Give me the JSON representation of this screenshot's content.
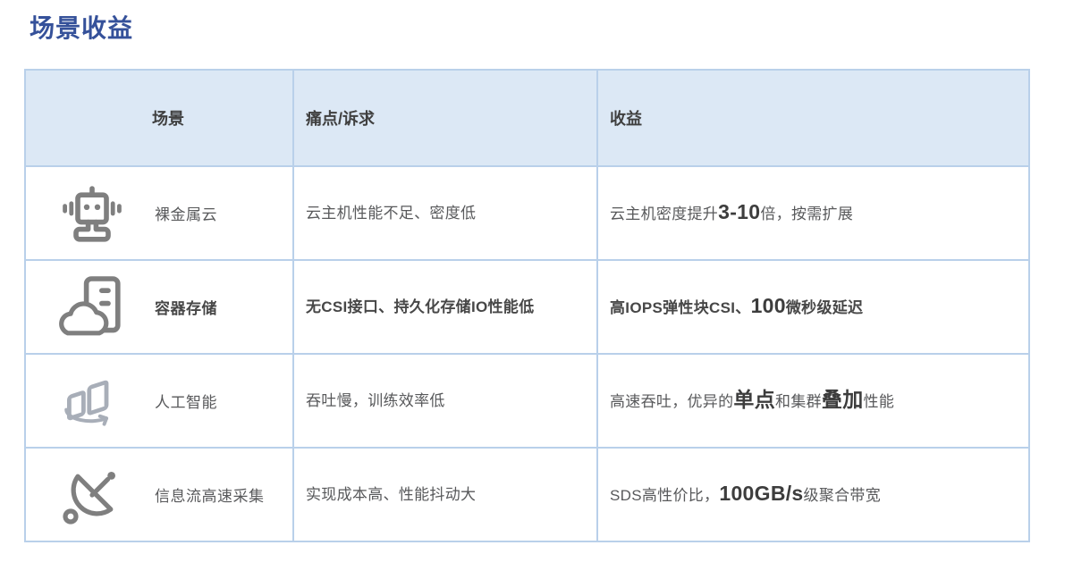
{
  "page": {
    "title": "场景收益"
  },
  "colors": {
    "title": "#35519a",
    "header_bg": "#dce8f5",
    "border": "#b9d0ea",
    "text": "#58595b",
    "text_strong": "#3f3f3f",
    "icon_gray": "#7f7f7f",
    "icon_light": "#a8aeb8"
  },
  "table": {
    "headers": {
      "scenario": "场景",
      "pain": "痛点/诉求",
      "benefit": "收益"
    },
    "rows": [
      {
        "icon": "robot-icon",
        "scenario": "裸金属云",
        "scenario_style": "normal",
        "pain": [
          {
            "t": "云主机性能不足、密度低",
            "s": "normal"
          }
        ],
        "benefit": [
          {
            "t": "云主机密度提升",
            "s": "normal"
          },
          {
            "t": "3-10",
            "s": "big"
          },
          {
            "t": "倍，按需扩展",
            "s": "normal"
          }
        ]
      },
      {
        "icon": "cloud-server-icon",
        "scenario": "容器存储",
        "scenario_style": "bold",
        "pain": [
          {
            "t": "无CSI接口、持久化存储IO性能低",
            "s": "bold"
          }
        ],
        "benefit": [
          {
            "t": "高IOPS弹性块CSI、",
            "s": "bold"
          },
          {
            "t": "100",
            "s": "big"
          },
          {
            "t": "微秒级延迟",
            "s": "bold"
          }
        ]
      },
      {
        "icon": "ai-sync-icon",
        "scenario": "人工智能",
        "scenario_style": "normal",
        "pain": [
          {
            "t": "吞吐慢，训练效率低",
            "s": "normal"
          }
        ],
        "benefit": [
          {
            "t": "高速吞吐，优异的",
            "s": "normal"
          },
          {
            "t": "单点",
            "s": "big"
          },
          {
            "t": "和集群",
            "s": "normal"
          },
          {
            "t": "叠加",
            "s": "big"
          },
          {
            "t": "性能",
            "s": "normal"
          }
        ]
      },
      {
        "icon": "satellite-dish-icon",
        "scenario": "信息流高速采集",
        "scenario_style": "normal",
        "pain": [
          {
            "t": "实现成本高、性能抖动大",
            "s": "normal"
          }
        ],
        "benefit": [
          {
            "t": "SDS高性价比，",
            "s": "normal"
          },
          {
            "t": "100GB/s",
            "s": "big"
          },
          {
            "t": "级聚合带宽",
            "s": "normal"
          }
        ]
      }
    ]
  }
}
